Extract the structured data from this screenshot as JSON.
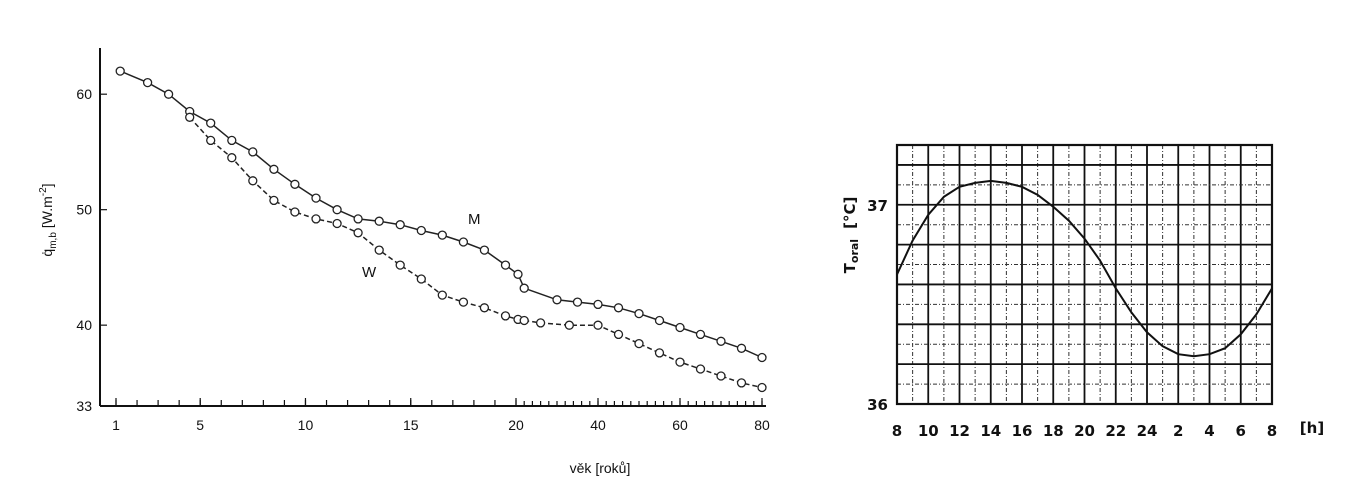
{
  "chart_data": [
    {
      "type": "line",
      "ylabel_main": "q̇",
      "ylabel_sub": "m,b",
      "ylabel_unit": "[W.m",
      "ylabel_exp": "-2",
      "ylabel_close": "]",
      "xlabel": "věk [roků]",
      "ylim": [
        33,
        64
      ],
      "y_ticks": [
        "60",
        "50",
        "40",
        "33"
      ],
      "x_ticks": [
        "1",
        "5",
        "10",
        "15",
        "20",
        "40",
        "60",
        "80"
      ],
      "series": [
        {
          "name": "M",
          "style": "solid",
          "x": [
            1.2,
            2.5,
            3.5,
            4.5,
            5.5,
            6.5,
            7.5,
            8.5,
            9.5,
            10.5,
            11.5,
            12.5,
            13.5,
            14.5,
            15.5,
            16.5,
            17.5,
            18.5,
            19.5,
            20.5,
            22,
            30,
            35,
            40,
            45,
            50,
            55,
            60,
            65,
            70,
            75,
            80
          ],
          "y": [
            62,
            61,
            60,
            58.5,
            57.5,
            56,
            55,
            53.5,
            52.2,
            51,
            50,
            49.2,
            49,
            48.7,
            48.2,
            47.8,
            47.2,
            46.5,
            45.2,
            44.4,
            43.2,
            42.2,
            42,
            41.8,
            41.5,
            41,
            40.4,
            39.8,
            39.2,
            38.6,
            38,
            37.2
          ]
        },
        {
          "name": "W",
          "style": "dashed",
          "x": [
            4.5,
            5.5,
            6.5,
            7.5,
            8.5,
            9.5,
            10.5,
            11.5,
            12.5,
            13.5,
            14.5,
            15.5,
            16.5,
            17.5,
            18.5,
            19.5,
            20.5,
            22,
            26,
            33,
            40,
            45,
            50,
            55,
            60,
            65,
            70,
            75,
            80
          ],
          "y": [
            58,
            56,
            54.5,
            52.5,
            50.8,
            49.8,
            49.2,
            48.8,
            48,
            46.5,
            45.2,
            44,
            42.6,
            42,
            41.5,
            40.8,
            40.5,
            40.4,
            40.2,
            40,
            40,
            39.2,
            38.4,
            37.6,
            36.8,
            36.2,
            35.6,
            35,
            34.6
          ]
        }
      ]
    },
    {
      "type": "line",
      "ylabel_main": "T",
      "ylabel_sub": "oral",
      "ylabel_unit": "[°C]",
      "xlabel": "[h]",
      "ylim": [
        36,
        37.3
      ],
      "y_ticks": [
        "37",
        "36"
      ],
      "x_ticks": [
        "8",
        "10",
        "12",
        "14",
        "16",
        "18",
        "20",
        "22",
        "24",
        "2",
        "4",
        "6",
        "8"
      ],
      "series": [
        {
          "style": "solid",
          "x_hours_since_start": [
            0,
            1,
            2,
            3,
            4,
            5,
            6,
            7,
            8,
            9,
            10,
            11,
            12,
            13,
            14,
            15,
            16,
            17,
            18,
            19,
            20,
            21,
            22,
            23,
            24
          ],
          "y": [
            36.65,
            36.82,
            36.95,
            37.04,
            37.09,
            37.11,
            37.12,
            37.11,
            37.09,
            37.05,
            36.99,
            36.92,
            36.83,
            36.72,
            36.58,
            36.46,
            36.36,
            36.29,
            36.25,
            36.24,
            36.25,
            36.28,
            36.35,
            36.45,
            36.58
          ]
        }
      ]
    }
  ]
}
